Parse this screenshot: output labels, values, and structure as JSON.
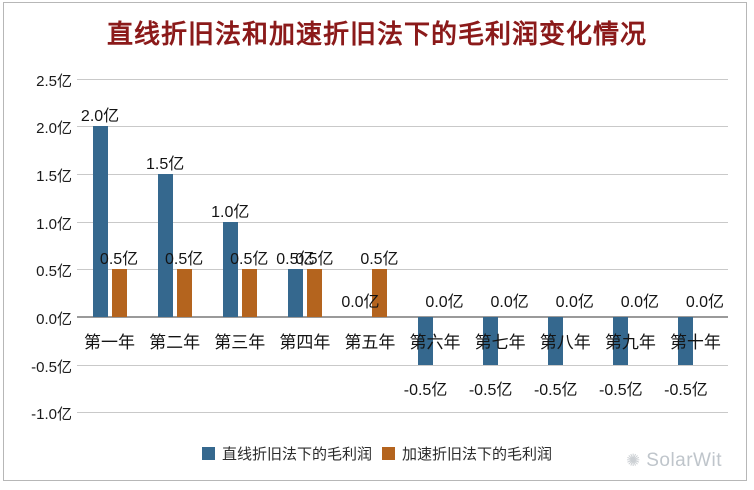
{
  "title": "直线折旧法和加速折旧法下的毛利润变化情况",
  "unit": "亿",
  "colors": {
    "title": "#8b1a1a",
    "series_blue": "#35688E",
    "series_orange": "#B4641E",
    "gridline": "#c9c9c9",
    "zero_line": "#9a9a9a",
    "label_text": "#141414",
    "watermark": "#bfc5cb"
  },
  "chart_data": {
    "type": "bar",
    "categories": [
      "第一年",
      "第二年",
      "第三年",
      "第四年",
      "第五年",
      "第六年",
      "第七年",
      "第八年",
      "第九年",
      "第十年"
    ],
    "series": [
      {
        "name": "直线折旧法下的毛利润",
        "color": "#35688E",
        "values": [
          2.0,
          1.5,
          1.0,
          0.5,
          0.0,
          -0.5,
          -0.5,
          -0.5,
          -0.5,
          -0.5
        ]
      },
      {
        "name": "加速折旧法下的毛利润",
        "color": "#B4641E",
        "values": [
          0.5,
          0.5,
          0.5,
          0.5,
          0.5,
          0.0,
          0.0,
          0.0,
          0.0,
          0.0
        ]
      }
    ],
    "title": "直线折旧法和加速折旧法下的毛利润变化情况",
    "xlabel": "",
    "ylabel": "",
    "ylim": [
      -1.0,
      2.5
    ],
    "ytick_step": 0.5,
    "yticks": [
      "2.5亿",
      "2.0亿",
      "1.5亿",
      "1.0亿",
      "0.5亿",
      "0.0亿",
      "-0.5亿",
      "-1.0亿"
    ],
    "data_labels": true,
    "grid": true,
    "legend_position": "bottom"
  },
  "legend": {
    "items": [
      {
        "label": "直线折旧法下的毛利润",
        "color": "#35688E"
      },
      {
        "label": "加速折旧法下的毛利润",
        "color": "#B4641E"
      }
    ]
  },
  "watermark": {
    "icon": "✺",
    "text": "SolarWit"
  }
}
